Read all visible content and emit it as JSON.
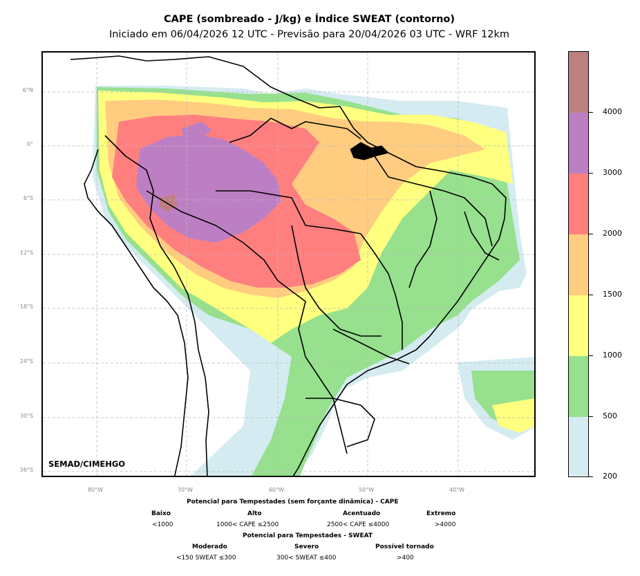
{
  "title": "CAPE (sombreado - J/kg) e Índice SWEAT (contorno)",
  "subtitle": "Iniciado em 06/04/2026 12 UTC - Previsão para 20/04/2026 03 UTC - WRF 12km",
  "watermark": "SEMAD/CIMEHGO",
  "lat_ticks": [
    "6°N",
    "0°",
    "6°S",
    "12°S",
    "18°S",
    "24°S",
    "30°S",
    "36°S"
  ],
  "lon_ticks": [
    "80°W",
    "70°W",
    "60°W",
    "50°W",
    "40°W"
  ],
  "colorbar": {
    "levels": [
      "200",
      "500",
      "1000",
      "1500",
      "2000",
      "3000",
      "4000"
    ],
    "colors": [
      "#d4ebf1",
      "#96e08e",
      "#ffff80",
      "#ffcc80",
      "#ff7f7f",
      "#bd7fc4",
      "#bf7f7f"
    ]
  },
  "legend": {
    "cape_heading": "Potencial para Tempestades (sem forçante dinâmica) - CAPE",
    "cape_categories": [
      {
        "name": "Baixo",
        "range": "<1000"
      },
      {
        "name": "Alto",
        "range": "1000< CAPE ≤2500"
      },
      {
        "name": "Acentuado",
        "range": "2500< CAPE ≤4000"
      },
      {
        "name": "Extremo",
        "range": ">4000"
      }
    ],
    "sweat_heading": "Potencial para Tempestades - SWEAT",
    "sweat_categories": [
      {
        "name": "Moderado",
        "range": "<150 SWEAT ≤300"
      },
      {
        "name": "Severo",
        "range": "300< SWEAT ≤400"
      },
      {
        "name": "Possível tornado",
        "range": ">400"
      }
    ]
  }
}
